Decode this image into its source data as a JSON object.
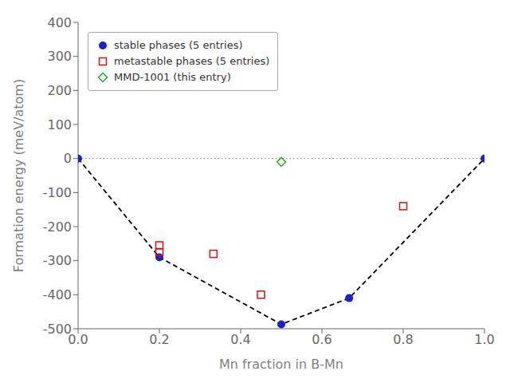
{
  "chart_data": {
    "type": "scatter",
    "xlabel": "Mn fraction in B-Mn",
    "ylabel": "Formation energy (meV/atom)",
    "xlim": [
      0.0,
      1.0
    ],
    "ylim": [
      -500,
      400
    ],
    "xticks": [
      {
        "value": 0.0,
        "label": "0.0"
      },
      0.2,
      0.4,
      0.6,
      0.8,
      {
        "value": 1.0,
        "label": "1.0"
      }
    ],
    "yticks": [
      -500,
      -400,
      -300,
      -200,
      -100,
      0,
      100,
      200,
      300,
      400
    ],
    "grid": false,
    "legend": "upper left",
    "series": [
      {
        "type": "hline",
        "color": "#808080",
        "line_style": "dotted",
        "values": [
          0
        ]
      },
      {
        "type": "line",
        "color": "#000000",
        "line_style": "dashed",
        "x": [
          0.0,
          0.2,
          0.5,
          0.667,
          1.0
        ],
        "y": [
          0,
          -290,
          -487,
          -410,
          0
        ]
      },
      {
        "type": "scatter",
        "name": "stable phases (5 entries)",
        "color": "#1f1fcc",
        "marker": "circle",
        "x": [
          0.0,
          0.2,
          0.5,
          0.667,
          1.0
        ],
        "y": [
          0,
          -290,
          -487,
          -410,
          0
        ]
      },
      {
        "type": "scatter",
        "name": "metastable phases (5 entries)",
        "color": "#dd1111",
        "marker": "square_open",
        "x": [
          0.2,
          0.2,
          0.333,
          0.45,
          0.8
        ],
        "y": [
          -255,
          -275,
          -280,
          -400,
          -140
        ]
      },
      {
        "type": "scatter",
        "name": "MMD-1001 (this entry)",
        "color": "#22aa22",
        "marker": "diamond_open",
        "x": [
          0.5
        ],
        "y": [
          -10
        ]
      }
    ]
  }
}
